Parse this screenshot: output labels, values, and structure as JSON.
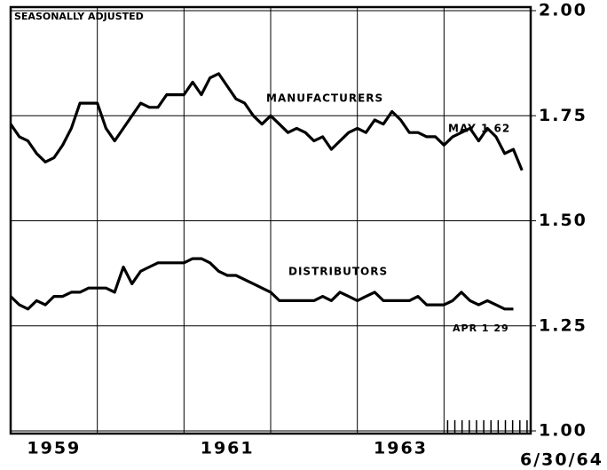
{
  "chart_data": {
    "type": "line",
    "annotations": [
      "SEASONALLY ADJUSTED",
      "MANUFACTURERS",
      "DISTRIBUTORS",
      "MAY 1 62",
      "APR 1 29",
      "6/30/64"
    ],
    "x": [
      1959,
      1959.1,
      1959.2,
      1959.3,
      1959.4,
      1959.5,
      1959.6,
      1959.7,
      1959.8,
      1959.9,
      1960,
      1960.1,
      1960.2,
      1960.3,
      1960.4,
      1960.5,
      1960.6,
      1960.7,
      1960.8,
      1960.9,
      1961,
      1961.1,
      1961.2,
      1961.3,
      1961.4,
      1961.5,
      1961.6,
      1961.7,
      1961.8,
      1961.9,
      1962,
      1962.1,
      1962.2,
      1962.3,
      1962.4,
      1962.5,
      1962.6,
      1962.7,
      1962.8,
      1962.9,
      1963,
      1963.1,
      1963.2,
      1963.3,
      1963.4,
      1963.5,
      1963.6,
      1963.7,
      1963.8,
      1963.9,
      1964,
      1964.1,
      1964.2,
      1964.3,
      1964.4,
      1964.5,
      1964.6,
      1964.7,
      1964.8,
      1964.9
    ],
    "series": [
      {
        "name": "MANUFACTURERS",
        "color": "#000000",
        "values": [
          1.73,
          1.7,
          1.69,
          1.66,
          1.64,
          1.65,
          1.68,
          1.72,
          1.78,
          1.78,
          1.78,
          1.72,
          1.69,
          1.72,
          1.75,
          1.78,
          1.77,
          1.77,
          1.8,
          1.8,
          1.8,
          1.83,
          1.8,
          1.84,
          1.85,
          1.82,
          1.79,
          1.78,
          1.75,
          1.73,
          1.75,
          1.73,
          1.71,
          1.72,
          1.71,
          1.69,
          1.7,
          1.67,
          1.69,
          1.71,
          1.72,
          1.71,
          1.74,
          1.73,
          1.76,
          1.74,
          1.71,
          1.71,
          1.7,
          1.7,
          1.68,
          1.7,
          1.71,
          1.72,
          1.69,
          1.72,
          1.7,
          1.66,
          1.67,
          1.62
        ]
      },
      {
        "name": "DISTRIBUTORS",
        "color": "#000000",
        "values": [
          1.32,
          1.3,
          1.29,
          1.31,
          1.3,
          1.32,
          1.32,
          1.33,
          1.33,
          1.34,
          1.34,
          1.34,
          1.33,
          1.39,
          1.35,
          1.38,
          1.39,
          1.4,
          1.4,
          1.4,
          1.4,
          1.41,
          1.41,
          1.4,
          1.38,
          1.37,
          1.37,
          1.36,
          1.35,
          1.34,
          1.33,
          1.31,
          1.31,
          1.31,
          1.31,
          1.31,
          1.32,
          1.31,
          1.33,
          1.32,
          1.31,
          1.32,
          1.33,
          1.31,
          1.31,
          1.31,
          1.31,
          1.32,
          1.3,
          1.3,
          1.3,
          1.31,
          1.33,
          1.31,
          1.3,
          1.31,
          1.3,
          1.29,
          1.29,
          null
        ]
      }
    ],
    "xlim": [
      1959,
      1965
    ],
    "xticks": [
      {
        "value": 1959.5,
        "label": "1959"
      },
      {
        "value": 1961.5,
        "label": "1961"
      },
      {
        "value": 1963.5,
        "label": "1963"
      }
    ],
    "xgrid": [
      1960,
      1961,
      1962,
      1963,
      1964
    ],
    "ylim": [
      1,
      2
    ],
    "yticks": [
      {
        "value": 1,
        "label": "1.00"
      },
      1.25,
      {
        "value": 1.5,
        "label": "1.50"
      },
      1.75,
      {
        "value": 2,
        "label": "2.00"
      }
    ],
    "grid": true
  }
}
